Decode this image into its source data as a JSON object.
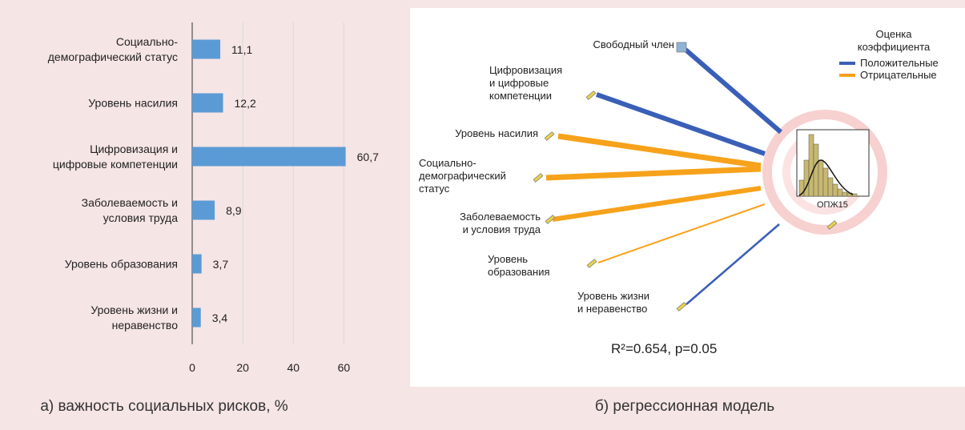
{
  "chart_data": {
    "type": "barh",
    "categories": [
      "Социально-\nдемографический статус",
      "Уровень насилия",
      "Цифровизация и\nцифровые компетенции",
      "Заболеваемость и\nусловия труда",
      "Уровень образования",
      "Уровень жизни и\nнеравенство"
    ],
    "values": [
      11.1,
      12.2,
      60.7,
      8.9,
      3.7,
      3.4
    ],
    "value_labels": [
      "11,1",
      "12,2",
      "60,7",
      "8,9",
      "3,7",
      "3,4"
    ],
    "color": "#5b9bd5",
    "xlim": [
      0,
      70
    ],
    "xticks": [
      0,
      20,
      40,
      60
    ],
    "grid": true
  },
  "diagram": {
    "nodes": [
      "Свободный член",
      "Цифровизация\nи цифровые\nкомпетенции",
      "Уровень насилия",
      "Социально-\nдемографический\nстатус",
      "Заболеваемость\nи условия труда",
      "Уровень\nобразования",
      "Уровень жизни\nи неравенство"
    ],
    "target": "ОПЖ15",
    "legend": {
      "title": "Оценка\nкоэффициента",
      "items": [
        {
          "name": "Положительные",
          "color": "#3a5fb7"
        },
        {
          "name": "Отрицательные",
          "color": "#f7a21b"
        }
      ]
    },
    "statistic": "R²=0.654, p=0.05"
  },
  "captions": [
    "а) важность социальных рисков, %",
    "б) регрессионная модель"
  ]
}
